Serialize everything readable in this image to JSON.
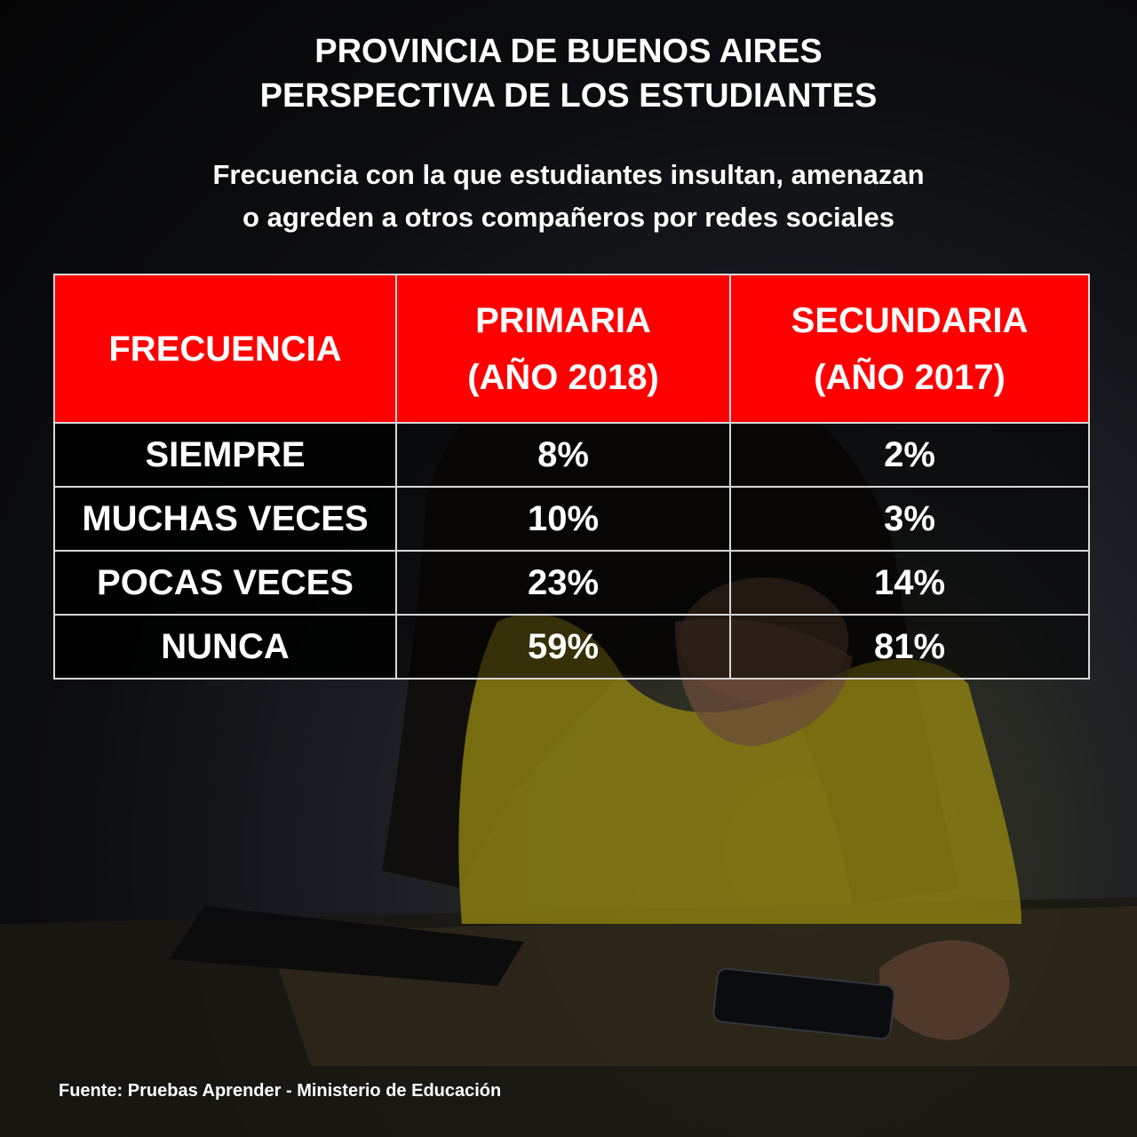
{
  "title_lines": [
    "PROVINCIA DE BUENOS AIRES",
    "PERSPECTIVA DE LOS ESTUDIANTES"
  ],
  "subtitle_lines": [
    "Frecuencia con la que estudiantes insultan, amenazan",
    "o agreden a otros compañeros por redes sociales"
  ],
  "chart_data": {
    "type": "table",
    "columns": [
      {
        "line1": "FRECUENCIA",
        "line2": ""
      },
      {
        "line1": "PRIMARIA",
        "line2": "(AÑO 2018)"
      },
      {
        "line1": "SECUNDARIA",
        "line2": "(AÑO 2017)"
      }
    ],
    "rows": [
      {
        "label": "SIEMPRE",
        "primaria": "8%",
        "secundaria": "2%"
      },
      {
        "label": "MUCHAS VECES",
        "primaria": "10%",
        "secundaria": "3%"
      },
      {
        "label": "POCAS VECES",
        "primaria": "23%",
        "secundaria": "14%"
      },
      {
        "label": "NUNCA",
        "primaria": "59%",
        "secundaria": "81%"
      }
    ],
    "header_color": "#ff0000"
  },
  "source": "Fuente: Pruebas Aprender - Ministerio de Educación"
}
